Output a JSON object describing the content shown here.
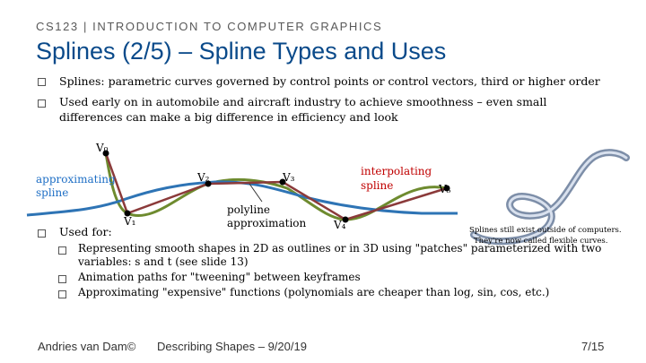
{
  "header": {
    "course": "CS123 | INTRODUCTION TO COMPUTER GRAPHICS",
    "title": "Splines (2/5) – Spline Types and Uses"
  },
  "bullets": [
    {
      "text": "Splines: parametric curves governed by control points or control vectors, third or higher order"
    },
    {
      "text_line1": "Used early on in automobile and aircraft industry to achieve smoothness – even small",
      "text_line2": "differences can make a big difference in efficiency and look"
    }
  ],
  "diagram": {
    "v0": "V₀",
    "v1": "V₁",
    "v2": "V₂",
    "v3": "V₃",
    "v4": "V₄",
    "v5": "V₅",
    "approx_line1": "approximating",
    "approx_line2": "spline",
    "interp_line1": "interpolating",
    "interp_line2": "spline",
    "poly_line1": "polyline",
    "poly_line2": "approximation",
    "colors": {
      "polyline": "#8b3a3a",
      "approximating": "#2e74b5",
      "interpolating": "#6e8b2f"
    }
  },
  "image_caption": {
    "line1": "Splines still exist outside of computers.",
    "line2": "They're now called flexible curves."
  },
  "used_for": {
    "label": "Used for:",
    "items": [
      {
        "line1": "Representing smooth shapes in 2D as outlines or in 3D using \"patches\" parameterized with two",
        "line2": "variables: s and t (see slide 13)"
      },
      {
        "line1": "Animation paths for \"tweening\" between keyframes"
      },
      {
        "line1": "Approximating \"expensive\" functions (polynomials are cheaper than log, sin, cos, etc.)"
      }
    ]
  },
  "footer": {
    "author": "Andries van Dam©",
    "date": "Describing Shapes – 9/20/19",
    "page": "7/15"
  }
}
